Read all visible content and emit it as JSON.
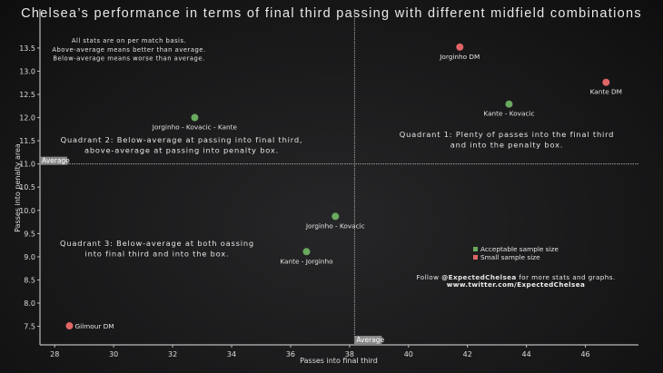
{
  "chart_data": {
    "type": "scatter",
    "title": "Chelsea’s performance in terms of final third passing with different midfield combinations",
    "xlabel": "Passes into final third",
    "ylabel": "Passes into penalty area",
    "xlim": [
      27.5,
      47.8
    ],
    "ylim": [
      7.1,
      13.85
    ],
    "xticks": [
      28,
      30,
      32,
      34,
      36,
      38,
      40,
      42,
      44,
      46
    ],
    "yticks": [
      "7.5",
      "8.0",
      "8.5",
      "9.0",
      "9.5",
      "10.0",
      "10.5",
      "11.0",
      "11.5",
      "12.0",
      "12.5",
      "13.0",
      "13.5"
    ],
    "grid": false,
    "average": {
      "x": 38.17,
      "y": 11.0,
      "x_label": "Average",
      "y_label": "Average"
    },
    "colors": {
      "acceptable": "#6aaa5e",
      "small": "#e06666",
      "background": "#1b1b1c",
      "text": "#e8e8e8"
    },
    "points": [
      {
        "label": "Jorginho DM",
        "x": 41.74,
        "y": 13.52,
        "sample": "small"
      },
      {
        "label": "Kante DM",
        "x": 46.7,
        "y": 12.76,
        "sample": "small"
      },
      {
        "label": "Kante - Kovacic",
        "x": 43.41,
        "y": 12.29,
        "sample": "acceptable"
      },
      {
        "label": "Jorginho - Kovacic - Kante",
        "x": 32.75,
        "y": 12.0,
        "sample": "acceptable"
      },
      {
        "label": "Jorginho - Kovacic",
        "x": 37.52,
        "y": 9.87,
        "sample": "acceptable"
      },
      {
        "label": "Kante - Jorginho",
        "x": 36.54,
        "y": 9.11,
        "sample": "acceptable"
      },
      {
        "label": "Gilmour DM",
        "x": 28.5,
        "y": 7.51,
        "sample": "small"
      }
    ],
    "legend": {
      "placement": "lower-right",
      "entries": [
        {
          "label": "Acceptable sample size",
          "sample": "acceptable"
        },
        {
          "label": "Small sample size",
          "sample": "small"
        }
      ]
    },
    "annotations": {
      "note": [
        "All stats are on per match basis.",
        "Above-average means better than average.",
        "Below-average means worse than average."
      ],
      "quadrant1": [
        "Quadrant 1: Plenty of passes into the final third",
        "and into the penalty box."
      ],
      "quadrant2": [
        "Quadrant 2: Below-average at passing into final third,",
        "above-average at passing into penalty box."
      ],
      "quadrant3": [
        "Quadrant 3: Below-average at both oassing",
        "into final third and into the box."
      ],
      "follow_prefix": "Follow ",
      "follow_handle": "@ExpectedChelsea",
      "follow_suffix": " for more stats and graphs.",
      "url": "www.twitter.com/ExpectedChelsea"
    }
  }
}
